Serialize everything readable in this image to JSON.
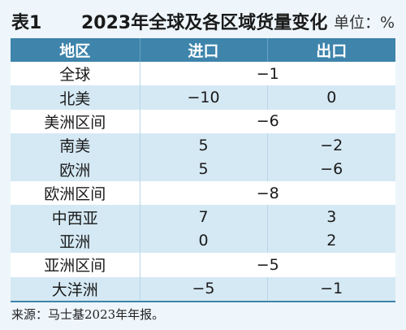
{
  "title": {
    "number": "表1",
    "text": "2023年全球及各区域货量变化",
    "unit": "单位：%"
  },
  "headers": [
    "地区",
    "进口",
    "出口"
  ],
  "rows": [
    {
      "region": "全球",
      "merged": "−1"
    },
    {
      "region": "北美",
      "import": "−10",
      "export": "0"
    },
    {
      "region": "美洲区间",
      "merged": "−6"
    },
    {
      "region": "南美",
      "import": "5",
      "export": "−2"
    },
    {
      "region": "欧洲",
      "import": "5",
      "export": "−6"
    },
    {
      "region": "欧洲区间",
      "merged": "−8"
    },
    {
      "region": "中西亚",
      "import": "7",
      "export": "3"
    },
    {
      "region": "亚洲",
      "import": "0",
      "export": "2"
    },
    {
      "region": "亚洲区间",
      "merged": "−5"
    },
    {
      "region": "大洋洲",
      "import": "−5",
      "export": "−1"
    }
  ],
  "source": "来源：马士基2023年年报。"
}
